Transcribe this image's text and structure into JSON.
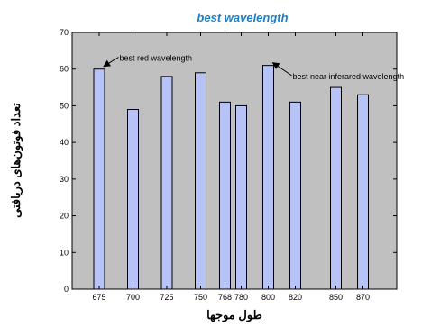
{
  "colors": {
    "title": "#1f7ec4",
    "plot_background": "#c0c0c0",
    "bar_fill": "#b7c3f7",
    "bar_stroke": "#000000",
    "figure_background": "#ffffff"
  },
  "chart_data": {
    "type": "bar",
    "title": "best wavelength",
    "xlabel": "طول موجها",
    "ylabel": "تعداد فوتون‌های دریافتی",
    "xlim": [
      655,
      895
    ],
    "ylim": [
      0,
      70
    ],
    "x_ticks": [
      "675",
      "700",
      "725",
      "750",
      "768",
      "780",
      "800",
      "820",
      "850",
      "870"
    ],
    "y_ticks": [
      "0",
      "10",
      "20",
      "30",
      "40",
      "50",
      "60",
      "70"
    ],
    "grid": false,
    "legend": "none",
    "bars": [
      {
        "x": 675,
        "value": 60
      },
      {
        "x": 700,
        "value": 49
      },
      {
        "x": 725,
        "value": 58
      },
      {
        "x": 750,
        "value": 59
      },
      {
        "x": 768,
        "value": 51
      },
      {
        "x": 780,
        "value": 50
      },
      {
        "x": 800,
        "value": 61
      },
      {
        "x": 820,
        "value": 51
      },
      {
        "x": 850,
        "value": 55
      },
      {
        "x": 870,
        "value": 53
      }
    ],
    "annotations": [
      {
        "text": "best red wavelength",
        "target_x": 675,
        "target_y": 60,
        "text_x": 690,
        "text_y": 63
      },
      {
        "text": "best near inferared wavelength",
        "target_x": 800,
        "target_y": 61,
        "text_x": 818,
        "text_y": 58
      }
    ]
  }
}
